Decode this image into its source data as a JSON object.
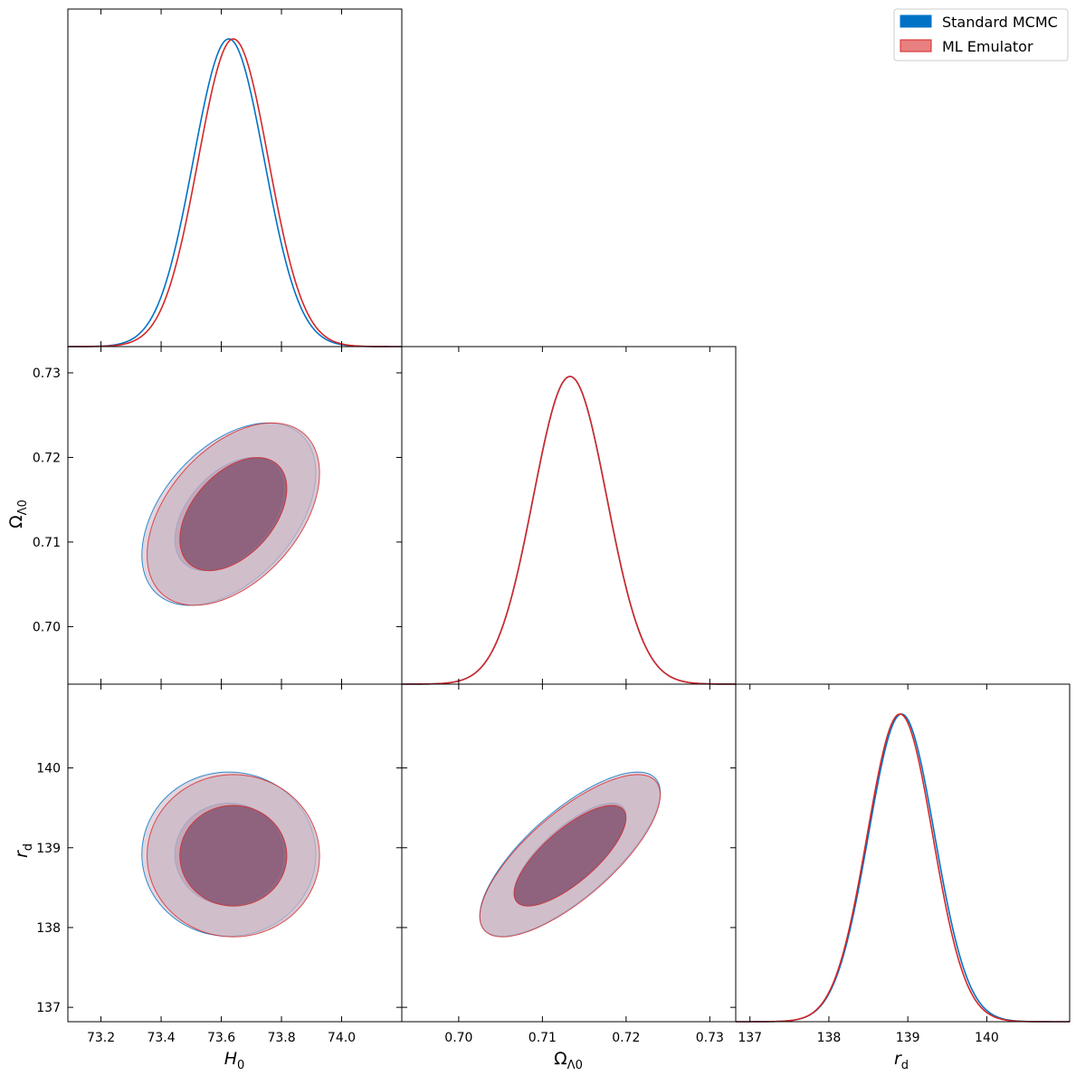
{
  "chart_data": {
    "type": "corner",
    "parameters": [
      {
        "key": "H0",
        "label": "H",
        "sub": "0",
        "range": [
          73.09,
          74.2
        ],
        "ticks": [
          73.2,
          73.4,
          73.6,
          73.8,
          74.0
        ],
        "tick_labels": [
          "73.2",
          "73.4",
          "73.6",
          "73.8",
          "74.0"
        ]
      },
      {
        "key": "OmegaL0",
        "label": "Ω",
        "sub": "Λ0",
        "range": [
          0.6932,
          0.7331
        ],
        "ticks": [
          0.7,
          0.71,
          0.72,
          0.73
        ],
        "tick_labels": [
          "0.70",
          "0.71",
          "0.72",
          "0.73"
        ]
      },
      {
        "key": "rd",
        "label": "r",
        "sub": "d",
        "range": [
          136.82,
          141.05
        ],
        "ticks": [
          137,
          138,
          139,
          140
        ],
        "tick_labels": [
          "137",
          "138",
          "139",
          "140"
        ]
      }
    ],
    "series": [
      {
        "name": "Standard MCMC",
        "color": "#0072c6",
        "fill_68": "#7d4b6a",
        "fill_95": "#cbb5c4",
        "mean": [
          73.625,
          0.7133,
          138.92
        ],
        "sigma": [
          0.118,
          0.0044,
          0.42
        ],
        "corr": {
          "H0_OmegaL0": 0.45,
          "H0_rd": 0.0,
          "OmegaL0_rd": 0.75
        }
      },
      {
        "name": "ML Emulator",
        "color": "#d62728",
        "fill_68": "#7d4b6a",
        "fill_95": "#cbb5c4",
        "mean": [
          73.64,
          0.7133,
          138.9
        ],
        "sigma": [
          0.117,
          0.0044,
          0.415
        ],
        "corr": {
          "H0_OmegaL0": 0.45,
          "H0_rd": 0.0,
          "OmegaL0_rd": 0.75
        }
      }
    ],
    "legend": {
      "position": "top-right",
      "entries": [
        {
          "label": "Standard MCMC",
          "color": "#0072c6"
        },
        {
          "label": "ML Emulator",
          "color": "#e88080"
        }
      ]
    }
  }
}
